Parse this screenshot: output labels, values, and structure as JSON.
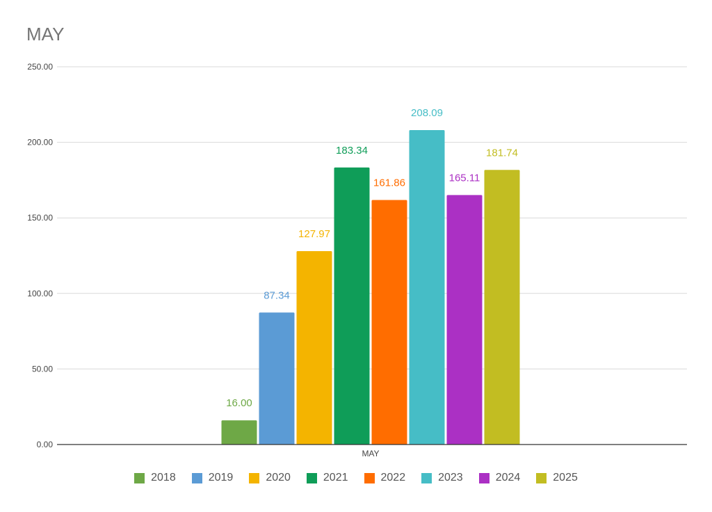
{
  "chart_data": {
    "type": "bar",
    "title": "MAY",
    "categories": [
      "MAY"
    ],
    "ylim": [
      0,
      250
    ],
    "yticks": [
      "0.00",
      "50.00",
      "100.00",
      "150.00",
      "200.00",
      "250.00"
    ],
    "grid": true,
    "legend_position": "bottom",
    "series": [
      {
        "name": "2018",
        "values": [
          16.0
        ],
        "label": "16.00",
        "color": "#6ea846"
      },
      {
        "name": "2019",
        "values": [
          87.34
        ],
        "label": "87.34",
        "color": "#5b9bd5"
      },
      {
        "name": "2020",
        "values": [
          127.97
        ],
        "label": "127.97",
        "color": "#f4b400"
      },
      {
        "name": "2021",
        "values": [
          183.34
        ],
        "label": "183.34",
        "color": "#0f9d58"
      },
      {
        "name": "2022",
        "values": [
          161.86
        ],
        "label": "161.86",
        "color": "#ff6d00"
      },
      {
        "name": "2023",
        "values": [
          208.09
        ],
        "label": "208.09",
        "color": "#46bdc6"
      },
      {
        "name": "2024",
        "values": [
          165.11
        ],
        "label": "165.11",
        "color": "#ab30c4"
      },
      {
        "name": "2025",
        "values": [
          181.74
        ],
        "label": "181.74",
        "color": "#c2bd22"
      }
    ]
  }
}
